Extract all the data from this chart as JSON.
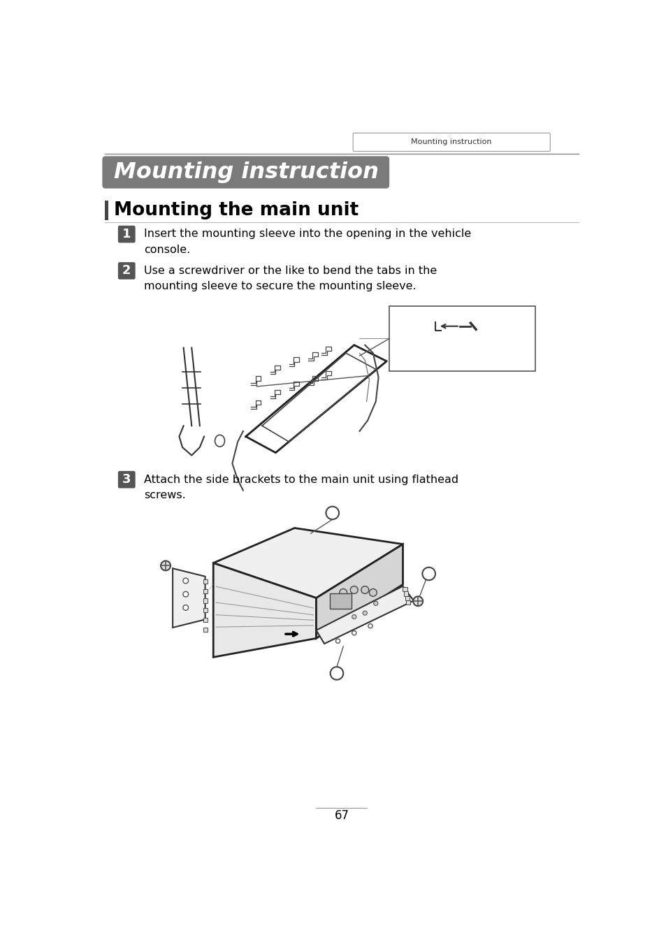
{
  "page_bg": "#ffffff",
  "header_tab_text": "Mounting instruction",
  "header_line_color": "#555555",
  "title_banner_bg": "#7a7a7a",
  "title_banner_text": "Mounting instruction",
  "title_banner_text_color": "#ffffff",
  "section_bar_color": "#444444",
  "section_title": "Mounting the main unit",
  "section_title_color": "#000000",
  "step_badge_bg": "#555555",
  "step_badge_text_color": "#ffffff",
  "step1_text": "Insert the mounting sleeve into the opening in the vehicle\nconsole.",
  "step2_text": "Use a screwdriver or the like to bend the tabs in the\nmounting sleeve to secure the mounting sleeve.",
  "step3_text": "Attach the side brackets to the main unit using flathead\nscrews.",
  "page_number": "67",
  "body_text_color": "#000000"
}
